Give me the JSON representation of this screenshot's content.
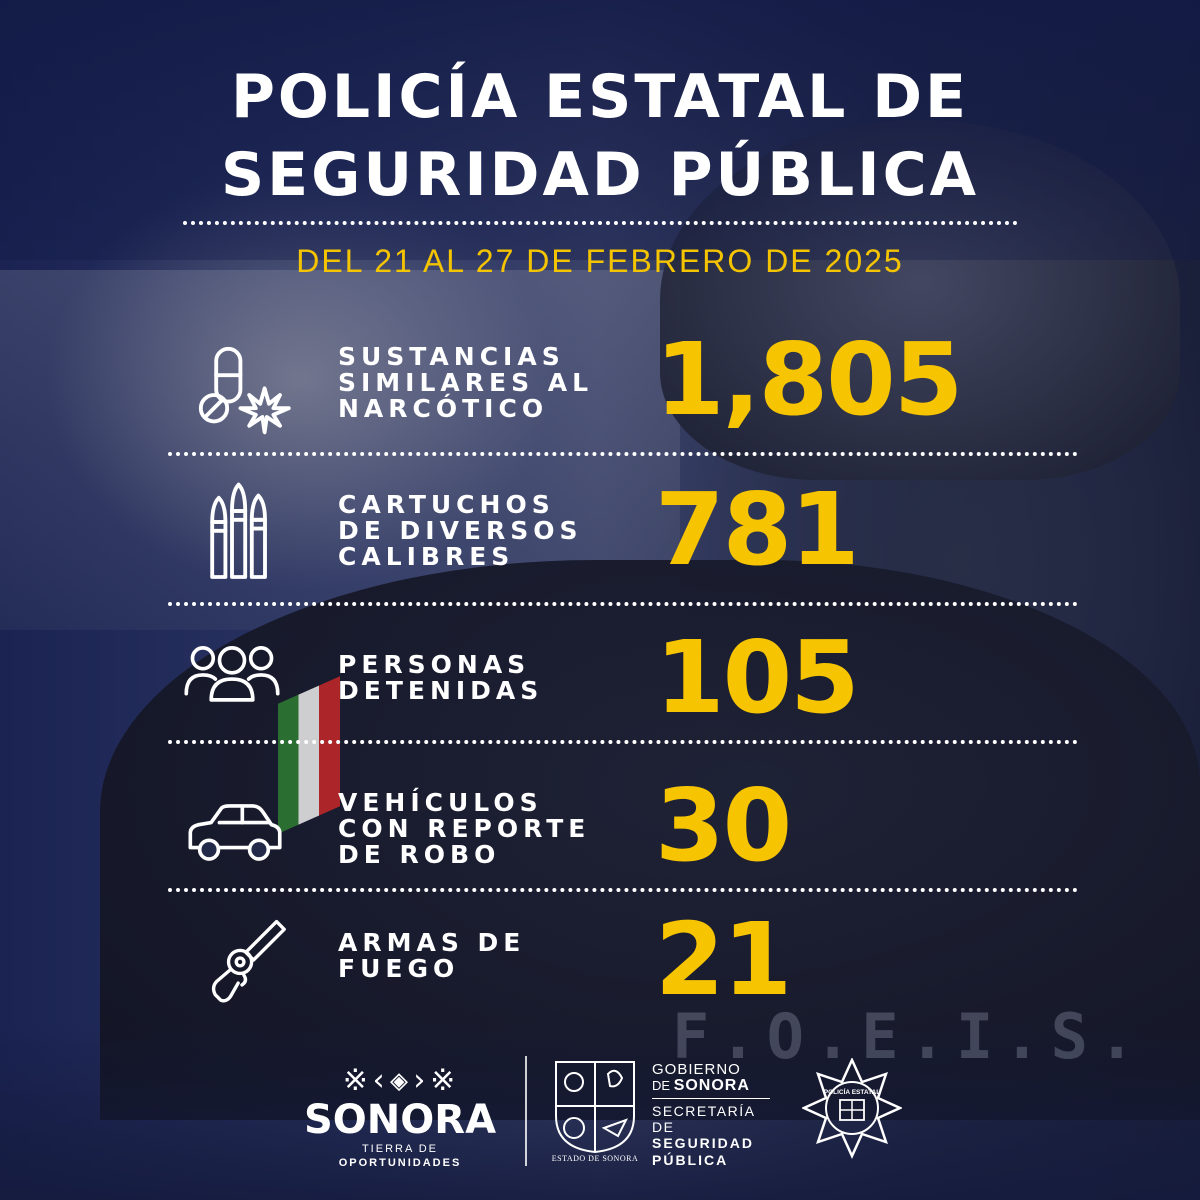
{
  "header": {
    "title_line1": "POLICÍA ESTATAL DE",
    "title_line2": "SEGURIDAD PÚBLICA",
    "date_range": "DEL 21 AL 27 DE FEBRERO DE 2025"
  },
  "stats": [
    {
      "icon": "pill-cannabis-icon",
      "label_lines": [
        "SUSTANCIAS",
        "SIMILARES AL",
        "NARCÓTICO"
      ],
      "value": "1,805"
    },
    {
      "icon": "bullets-icon",
      "label_lines": [
        "CARTUCHOS",
        "DE DIVERSOS",
        "CALIBRES"
      ],
      "value": "781"
    },
    {
      "icon": "people-group-icon",
      "label_lines": [
        "PERSONAS",
        "DETENIDAS"
      ],
      "value": "105"
    },
    {
      "icon": "car-icon",
      "label_lines": [
        "VEHÍCULOS",
        "CON REPORTE",
        "DE ROBO"
      ],
      "value": "30"
    },
    {
      "icon": "revolver-icon",
      "label_lines": [
        "ARMAS DE",
        "FUEGO"
      ],
      "value": "21"
    }
  ],
  "footer": {
    "sonora_glyphs": "※‹◈›※",
    "sonora_name": "SONORA",
    "sonora_tagline_prefix": "TIERRA DE",
    "sonora_tagline_bold": "OPORTUNIDADES",
    "shield_caption": "ESTADO DE SONORA",
    "gov_line1": "GOBIERNO",
    "gov_line2_prefix": "DE",
    "gov_line2_bold": "SONORA",
    "secretaria_line1": "SECRETARÍA DE",
    "secretaria_line2": "SEGURIDAD",
    "secretaria_line3": "PÚBLICA",
    "badge_text": "POLICÍA ESTATAL"
  },
  "background_text": "F.O.E.I.S.",
  "colors": {
    "accent": "#f6c400",
    "background": "#1b2450",
    "text": "#ffffff"
  }
}
